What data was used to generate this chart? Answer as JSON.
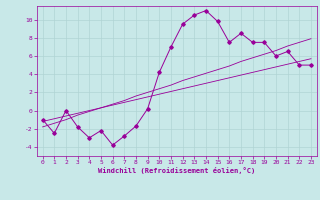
{
  "xlabel": "Windchill (Refroidissement éolien,°C)",
  "bg_color": "#c8e8e8",
  "grid_color": "#b0d4d4",
  "line_color": "#990099",
  "x_values": [
    0,
    1,
    2,
    3,
    4,
    5,
    6,
    7,
    8,
    9,
    10,
    11,
    12,
    13,
    14,
    15,
    16,
    17,
    18,
    19,
    20,
    21,
    22,
    23
  ],
  "y_main": [
    -1,
    -2.5,
    0,
    -1.8,
    -3,
    -2.2,
    -3.8,
    -2.8,
    -1.7,
    0.2,
    4.2,
    7,
    9.5,
    10.5,
    11,
    9.8,
    7.5,
    8.5,
    7.5,
    7.5,
    6,
    6.5,
    5,
    5
  ],
  "y_line1": [
    -1.2,
    -0.9,
    -0.6,
    -0.3,
    0.0,
    0.3,
    0.6,
    0.9,
    1.2,
    1.5,
    1.8,
    2.1,
    2.4,
    2.7,
    3.0,
    3.3,
    3.6,
    3.9,
    4.2,
    4.5,
    4.8,
    5.1,
    5.4,
    5.7
  ],
  "y_line2": [
    -1.8,
    -1.4,
    -1.0,
    -0.5,
    -0.1,
    0.3,
    0.7,
    1.1,
    1.6,
    2.0,
    2.4,
    2.8,
    3.3,
    3.7,
    4.1,
    4.5,
    4.9,
    5.4,
    5.8,
    6.2,
    6.6,
    7.1,
    7.5,
    7.9
  ],
  "xlim": [
    -0.5,
    23.5
  ],
  "ylim": [
    -5,
    11.5
  ],
  "yticks": [
    -4,
    -2,
    0,
    2,
    4,
    6,
    8,
    10
  ],
  "xticks": [
    0,
    1,
    2,
    3,
    4,
    5,
    6,
    7,
    8,
    9,
    10,
    11,
    12,
    13,
    14,
    15,
    16,
    17,
    18,
    19,
    20,
    21,
    22,
    23
  ]
}
